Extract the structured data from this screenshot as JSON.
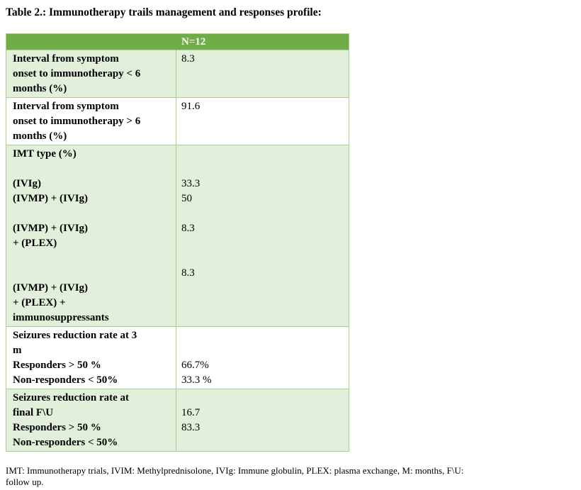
{
  "title": "Table 2.: Immunotherapy trails management and responses profile:",
  "colors": {
    "header_bg": "#70AD47",
    "header_text": "#FFFFFF",
    "band_bg": "#E2EFDA",
    "border": "#A9D08E"
  },
  "table": {
    "header_value": "N=12",
    "rows": [
      {
        "label": "Interval from symptom\nonset to immunotherapy < 6\nmonths (%)",
        "value": "8.3",
        "shaded": true
      },
      {
        "label": "Interval from symptom\nonset to immunotherapy > 6\nmonths (%)",
        "value": "91.6",
        "shaded": false
      },
      {
        "label": "IMT type (%)\n\n(IVIg)\n(IVMP) + (IVIg)\n\n(IVMP) + (IVIg)\n+ (PLEX)\n\n\n(IVMP) + (IVIg)\n+ (PLEX) +\nimmunosuppressants",
        "value": "\n\n33.3\n50\n\n8.3\n\n\n8.3",
        "shaded": true
      },
      {
        "label": "Seizures reduction rate at 3\nm\nResponders > 50 %\nNon-responders < 50%",
        "value": "\n\n66.7%\n33.3 %",
        "shaded": false
      },
      {
        "label": "Seizures reduction rate at\nfinal F\\U\nResponders > 50 %\nNon-responders < 50%",
        "value": "\n16.7\n83.3",
        "shaded": true
      }
    ]
  },
  "footnote": "IMT: Immunotherapy trials, IVIM: Methylprednisolone, IVIg: Immune globulin, PLEX: plasma exchange, M: months, F\\U:\nfollow up."
}
